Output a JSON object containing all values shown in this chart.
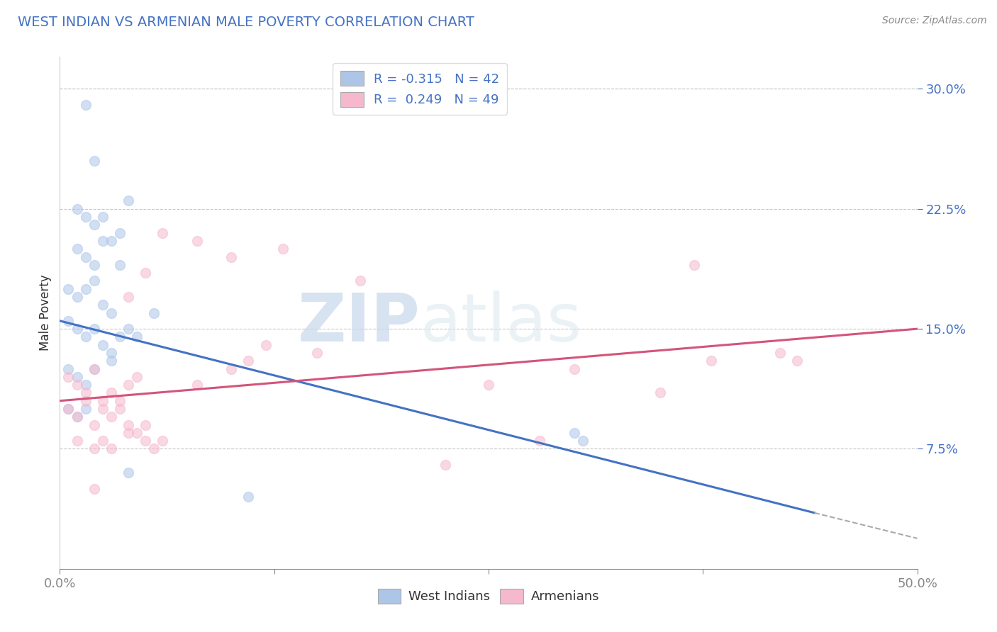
{
  "title": "WEST INDIAN VS ARMENIAN MALE POVERTY CORRELATION CHART",
  "source": "Source: ZipAtlas.com",
  "ylabel": "Male Poverty",
  "xlim": [
    0.0,
    50.0
  ],
  "ylim": [
    0.0,
    32.0
  ],
  "yticks": [
    7.5,
    15.0,
    22.5,
    30.0
  ],
  "ytick_labels": [
    "7.5%",
    "15.0%",
    "22.5%",
    "30.0%"
  ],
  "xticks": [
    0.0,
    12.5,
    25.0,
    37.5,
    50.0
  ],
  "xtick_labels": [
    "0.0%",
    "",
    "",
    "",
    "50.0%"
  ],
  "west_indian_color": "#adc6e8",
  "armenian_color": "#f5b8cd",
  "west_indian_line_color": "#4472c4",
  "armenian_line_color": "#d4547a",
  "dashed_extension_color": "#aaaaaa",
  "title_color": "#4472c4",
  "axis_label_color": "#4472c4",
  "legend_label1": "R = -0.315   N = 42",
  "legend_label2": "R =  0.249   N = 49",
  "watermark_text": "ZIPatlas",
  "background_color": "#ffffff",
  "grid_color": "#c8c8c8",
  "dot_size": 100,
  "dot_alpha": 0.55,
  "wi_line_x0": 0.0,
  "wi_line_y0": 15.5,
  "wi_line_x1": 44.0,
  "wi_line_y1": 3.5,
  "wi_dash_x0": 44.0,
  "wi_dash_y0": 3.5,
  "wi_dash_x1": 50.0,
  "wi_dash_y1": 1.9,
  "arm_line_x0": 0.0,
  "arm_line_y0": 10.5,
  "arm_line_x1": 50.0,
  "arm_line_y1": 15.0,
  "wi_x": [
    1.5,
    2.0,
    4.0,
    1.0,
    1.5,
    2.0,
    2.5,
    3.0,
    3.5,
    1.0,
    1.5,
    2.0,
    2.5,
    3.5,
    0.5,
    1.0,
    1.5,
    2.0,
    2.5,
    3.0,
    0.5,
    1.0,
    1.5,
    2.0,
    2.5,
    3.0,
    3.5,
    4.0,
    0.5,
    1.0,
    1.5,
    2.0,
    3.0,
    4.5,
    0.5,
    1.0,
    1.5,
    5.5,
    30.0,
    30.5,
    4.0,
    11.0
  ],
  "wi_y": [
    29.0,
    25.5,
    23.0,
    22.5,
    22.0,
    21.5,
    22.0,
    20.5,
    21.0,
    20.0,
    19.5,
    19.0,
    20.5,
    19.0,
    17.5,
    17.0,
    17.5,
    18.0,
    16.5,
    16.0,
    15.5,
    15.0,
    14.5,
    15.0,
    14.0,
    13.5,
    14.5,
    15.0,
    12.5,
    12.0,
    11.5,
    12.5,
    13.0,
    14.5,
    10.0,
    9.5,
    10.0,
    16.0,
    8.5,
    8.0,
    6.0,
    4.5
  ],
  "arm_x": [
    0.5,
    1.0,
    1.5,
    2.0,
    2.5,
    3.0,
    3.5,
    4.0,
    4.5,
    0.5,
    1.0,
    1.5,
    2.0,
    2.5,
    3.0,
    3.5,
    4.0,
    4.5,
    5.0,
    1.0,
    2.0,
    2.5,
    3.0,
    4.0,
    5.0,
    5.5,
    6.0,
    8.0,
    10.0,
    11.0,
    12.0,
    15.0,
    13.0,
    17.5,
    25.0,
    30.0,
    35.0,
    38.0,
    42.0,
    37.0,
    43.0,
    4.0,
    5.0,
    6.0,
    8.0,
    10.0,
    22.5,
    28.0,
    2.0
  ],
  "arm_y": [
    12.0,
    11.5,
    11.0,
    12.5,
    10.5,
    11.0,
    10.0,
    11.5,
    12.0,
    10.0,
    9.5,
    10.5,
    9.0,
    10.0,
    9.5,
    10.5,
    9.0,
    8.5,
    9.0,
    8.0,
    7.5,
    8.0,
    7.5,
    8.5,
    8.0,
    7.5,
    8.0,
    11.5,
    12.5,
    13.0,
    14.0,
    13.5,
    20.0,
    18.0,
    11.5,
    12.5,
    11.0,
    13.0,
    13.5,
    19.0,
    13.0,
    17.0,
    18.5,
    21.0,
    20.5,
    19.5,
    6.5,
    8.0,
    5.0
  ]
}
